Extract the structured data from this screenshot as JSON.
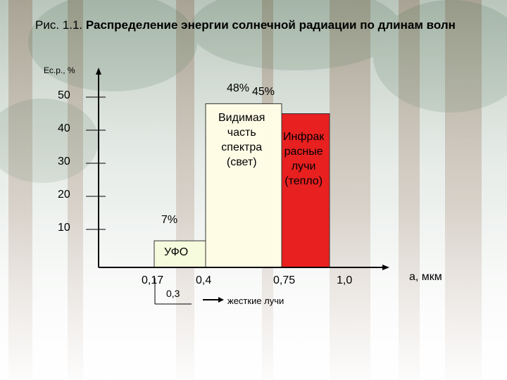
{
  "chart_data": {
    "type": "bar",
    "title_prefix": "Рис. 1.1.",
    "title": "Распределение энергии солнечной радиации по длинам волн",
    "ylabel": "Ес.р., %",
    "xlabel": "a, мкм",
    "y_ticks": [
      "50",
      "40",
      "30",
      "20",
      "10"
    ],
    "ylim": [
      0,
      55
    ],
    "bands": [
      {
        "label": "УФО",
        "x_start": "0,17",
        "x_end": "0,4",
        "value": 7,
        "value_label": "7%",
        "color": "#f6fbdd"
      },
      {
        "label": "Видимая часть спектра (свет)",
        "lines": [
          "Видимая",
          "часть",
          "спектра",
          "(свет)"
        ],
        "x_start": "0,4",
        "x_end": "0,75",
        "value": 48,
        "value_label": "48%",
        "color": "#fffce6"
      },
      {
        "label": "Инфракрасные лучи (тепло)",
        "lines": [
          "Инфрак",
          "расные",
          "лучи",
          "(тепло)"
        ],
        "x_start": "0,75",
        "x_end": "1,0",
        "value": 45,
        "value_label": "45%",
        "color": "#e82020"
      }
    ],
    "x_ticks": [
      "0,17",
      "0,4",
      "0,75",
      "1,0"
    ],
    "annotations": {
      "sub_tick": "0,3",
      "hard_rays": "жесткие лучи"
    }
  }
}
